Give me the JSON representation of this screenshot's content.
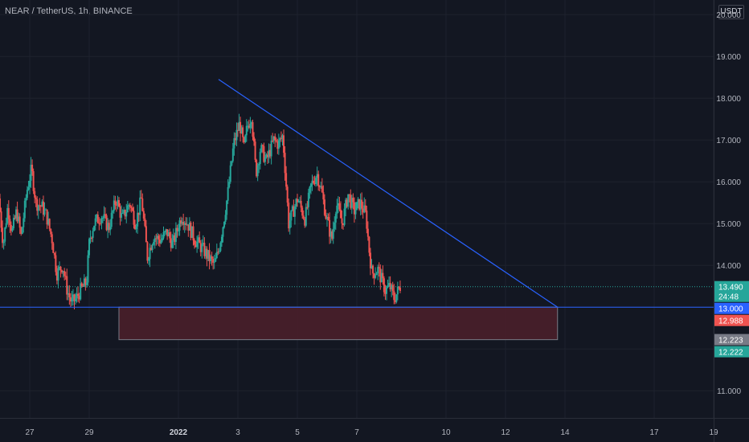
{
  "header": {
    "symbol_title": "NEAR / TetherUS, 1h, BINANCE",
    "currency": "USDT"
  },
  "colors": {
    "background": "#131722",
    "grid": "#1e222d",
    "up": "#26a69a",
    "down": "#ef5350",
    "trendline": "#2962ff",
    "zone_fill": "#4a1f2a",
    "zone_border": "#787b86"
  },
  "chart_data": {
    "type": "candlestick",
    "y_ticks": [
      "11.000",
      "12.000",
      "13.000",
      "14.000",
      "15.000",
      "16.000",
      "17.000",
      "18.000",
      "19.000",
      "20.000"
    ],
    "y_tick_values": [
      11,
      12,
      13,
      14,
      15,
      16,
      17,
      18,
      19,
      20
    ],
    "ylim": [
      10.35,
      20.35
    ],
    "x_ticks": [
      {
        "label": "27",
        "day": -5,
        "bold": false
      },
      {
        "label": "29",
        "day": -3,
        "bold": false
      },
      {
        "label": "2022",
        "day": 0,
        "bold": true
      },
      {
        "label": "3",
        "day": 2,
        "bold": false
      },
      {
        "label": "5",
        "day": 4,
        "bold": false
      },
      {
        "label": "7",
        "day": 6,
        "bold": false
      },
      {
        "label": "10",
        "day": 9,
        "bold": false
      },
      {
        "label": "12",
        "day": 11,
        "bold": false
      },
      {
        "label": "14",
        "day": 13,
        "bold": false
      },
      {
        "label": "17",
        "day": 16,
        "bold": false
      },
      {
        "label": "19",
        "day": 18,
        "bold": false
      }
    ],
    "xlim_days": [
      -6.0,
      18.0
    ],
    "price_path": [
      [
        -6.0,
        15.6
      ],
      [
        -5.85,
        14.5
      ],
      [
        -5.7,
        15.4
      ],
      [
        -5.55,
        14.8
      ],
      [
        -5.4,
        15.3
      ],
      [
        -5.25,
        14.7
      ],
      [
        -5.05,
        15.8
      ],
      [
        -4.9,
        16.3
      ],
      [
        -4.75,
        15.5
      ],
      [
        -4.55,
        15.4
      ],
      [
        -4.4,
        15.2
      ],
      [
        -4.2,
        14.6
      ],
      [
        -4.05,
        13.8
      ],
      [
        -3.85,
        14.0
      ],
      [
        -3.7,
        13.4
      ],
      [
        -3.55,
        13.1
      ],
      [
        -3.4,
        13.2
      ],
      [
        -3.25,
        13.4
      ],
      [
        -3.05,
        13.6
      ],
      [
        -2.95,
        14.6
      ],
      [
        -2.8,
        15.0
      ],
      [
        -2.55,
        15.2
      ],
      [
        -2.3,
        14.9
      ],
      [
        -2.05,
        15.6
      ],
      [
        -1.85,
        15.1
      ],
      [
        -1.6,
        15.5
      ],
      [
        -1.4,
        15.0
      ],
      [
        -1.2,
        15.6
      ],
      [
        -1.0,
        14.2
      ],
      [
        -0.8,
        14.7
      ],
      [
        -0.55,
        14.6
      ],
      [
        -0.35,
        14.8
      ],
      [
        -0.15,
        14.5
      ],
      [
        0.15,
        15.2
      ],
      [
        0.35,
        15.0
      ],
      [
        0.6,
        14.6
      ],
      [
        0.85,
        14.4
      ],
      [
        1.05,
        14.2
      ],
      [
        1.25,
        14.0
      ],
      [
        1.4,
        14.4
      ],
      [
        1.55,
        15.0
      ],
      [
        1.7,
        15.7
      ],
      [
        1.9,
        16.9
      ],
      [
        2.1,
        17.4
      ],
      [
        2.25,
        16.8
      ],
      [
        2.35,
        17.3
      ],
      [
        2.5,
        17.6
      ],
      [
        2.65,
        16.2
      ],
      [
        2.8,
        16.8
      ],
      [
        3.0,
        16.5
      ],
      [
        3.25,
        17.0
      ],
      [
        3.4,
        16.9
      ],
      [
        3.55,
        17.1
      ],
      [
        3.65,
        16.1
      ],
      [
        3.75,
        15.0
      ],
      [
        3.85,
        15.2
      ],
      [
        4.05,
        15.6
      ],
      [
        4.3,
        15.1
      ],
      [
        4.5,
        15.9
      ],
      [
        4.7,
        16.2
      ],
      [
        4.85,
        15.8
      ],
      [
        5.0,
        15.2
      ],
      [
        5.2,
        14.6
      ],
      [
        5.35,
        15.5
      ],
      [
        5.55,
        15.0
      ],
      [
        5.75,
        15.7
      ],
      [
        5.95,
        15.3
      ],
      [
        6.15,
        15.5
      ],
      [
        6.35,
        15.2
      ],
      [
        6.45,
        14.4
      ],
      [
        6.55,
        13.8
      ],
      [
        6.75,
        13.9
      ],
      [
        7.0,
        13.4
      ],
      [
        7.15,
        13.5
      ],
      [
        7.3,
        13.2
      ],
      [
        7.5,
        13.5
      ]
    ],
    "trendline": [
      [
        1.35,
        18.45
      ],
      [
        12.75,
        13.0
      ]
    ],
    "support_line": 13.0,
    "zone": {
      "top": 13.0,
      "bottom": 12.222,
      "start_day": -2.0,
      "end_day": 12.75
    },
    "current_price": 13.49,
    "price_tags": [
      {
        "value": 13.49,
        "label": "13.490",
        "sub": "24:48",
        "color": "#26a69a"
      },
      {
        "value": 13.0,
        "label": "13.000",
        "color": "#2962ff"
      },
      {
        "value": 12.988,
        "label": "12.988",
        "color": "#ef5350"
      },
      {
        "value": 12.223,
        "label": "12.223",
        "color": "#787b86"
      },
      {
        "value": 12.222,
        "label": "12.222",
        "color": "#26a69a"
      }
    ]
  }
}
